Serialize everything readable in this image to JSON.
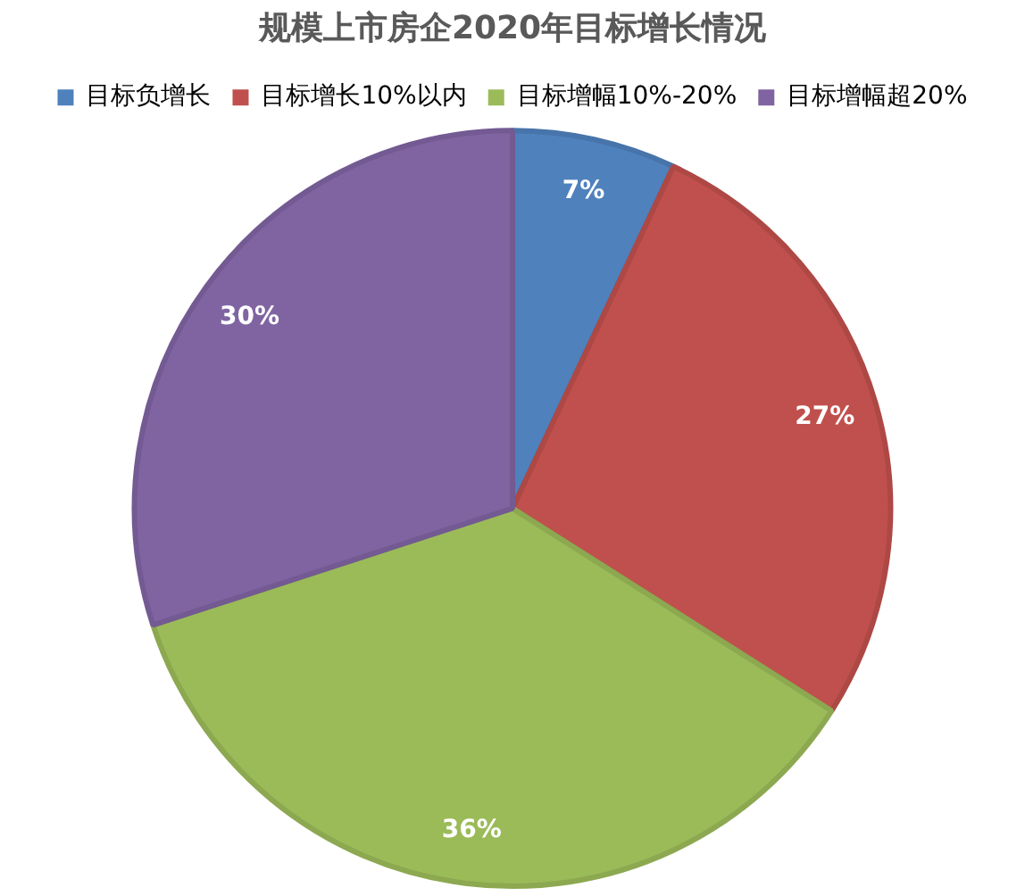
{
  "chart_data": {
    "type": "pie",
    "title": "规模上市房企2020年目标增长情况",
    "categories": [
      "目标负增长",
      "目标增长10%以内",
      "目标增幅10%-20%",
      "目标增幅超20%"
    ],
    "values": [
      7,
      27,
      36,
      30
    ],
    "colors": [
      "#4f81bd",
      "#c0504d",
      "#9bbb59",
      "#8064a2"
    ],
    "value_labels": [
      "7%",
      "27%",
      "36%",
      "30%"
    ],
    "legend": "top"
  }
}
